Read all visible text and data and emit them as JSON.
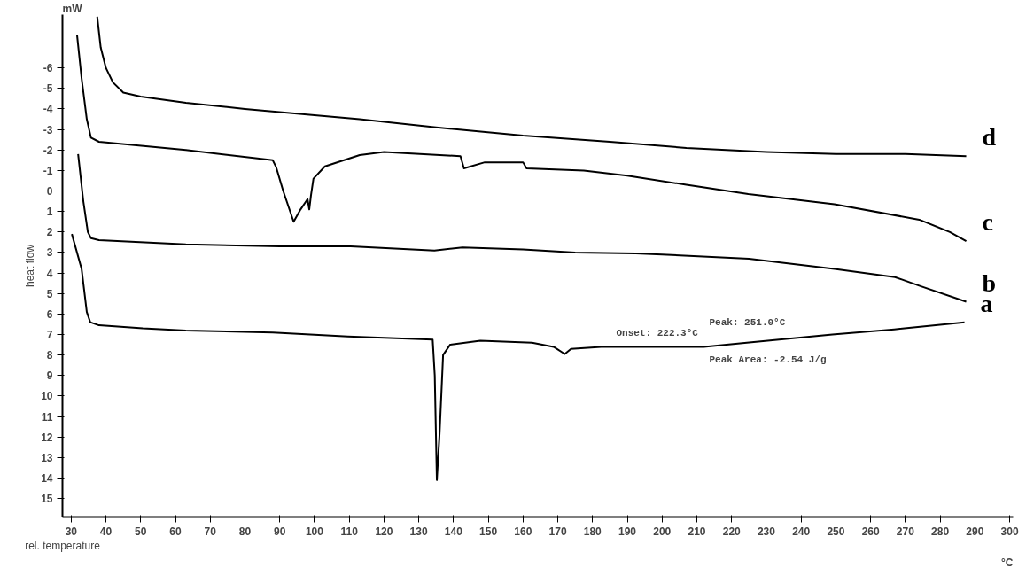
{
  "chart_data": {
    "type": "line",
    "xlabel": "rel. temperature",
    "ylabel": "heat flow",
    "annotations": [
      "mW",
      "°C",
      "Onset: 222.3°C",
      "Peak: 251.0°C",
      "Peak Area: -2.54 J/g"
    ],
    "xlim": [
      27.5,
      301
    ],
    "xticks": [
      30,
      40,
      50,
      60,
      70,
      80,
      90,
      100,
      110,
      120,
      130,
      140,
      150,
      160,
      170,
      180,
      190,
      200,
      210,
      220,
      230,
      240,
      250,
      260,
      270,
      280,
      290,
      300
    ],
    "ylim": [
      15.9,
      -8.6
    ],
    "yticks": [
      -6,
      -5,
      -4,
      -3,
      -2,
      -1,
      0,
      1,
      2,
      3,
      4,
      5,
      6,
      7,
      8,
      9,
      10,
      11,
      12,
      13,
      14,
      15
    ],
    "grid": false,
    "legend": false,
    "line_style": "solid",
    "marker": "none",
    "series": [
      {
        "name": "d",
        "color": "#000000",
        "x": [
          37.5,
          38.5,
          40,
          42,
          45,
          50,
          63,
          80,
          100,
          113,
          135,
          160,
          185,
          207,
          230,
          250,
          270,
          287.5
        ],
        "values": [
          -8.5,
          -7,
          -6,
          -5.3,
          -4.8,
          -4.6,
          -4.3,
          -4.0,
          -3.7,
          -3.5,
          -3.1,
          -2.7,
          -2.4,
          -2.1,
          -1.9,
          -1.8,
          -1.8,
          -1.7
        ]
      },
      {
        "name": "c",
        "color": "#000000",
        "x": [
          31.7,
          33,
          34.5,
          35.7,
          38,
          63,
          88,
          89,
          91,
          94,
          96,
          98,
          98.5,
          99,
          99.7,
          103,
          113,
          120,
          142,
          143,
          149,
          160,
          161,
          177.5,
          190,
          207,
          224.8,
          249.6,
          274,
          282.8,
          287.5
        ],
        "values": [
          -7.6,
          -5.5,
          -3.5,
          -2.6,
          -2.4,
          -2.0,
          -1.5,
          -1.15,
          0.0,
          1.5,
          0.9,
          0.4,
          0.9,
          0.2,
          -0.6,
          -1.2,
          -1.75,
          -1.9,
          -1.7,
          -1.1,
          -1.4,
          -1.4,
          -1.1,
          -1.0,
          -0.75,
          -0.3,
          0.15,
          0.65,
          1.4,
          2.0,
          2.45
        ]
      },
      {
        "name": "b",
        "color": "#000000",
        "x": [
          32,
          33.5,
          34.8,
          35.7,
          38,
          63,
          90,
          110.4,
          134.5,
          142.6,
          160,
          175,
          192.4,
          200,
          225,
          249.6,
          267,
          274.5,
          287.5
        ],
        "values": [
          -1.8,
          0.5,
          2.0,
          2.3,
          2.4,
          2.6,
          2.7,
          2.7,
          2.9,
          2.75,
          2.85,
          3.0,
          3.05,
          3.1,
          3.3,
          3.8,
          4.2,
          4.65,
          5.4
        ]
      },
      {
        "name": "a",
        "color": "#000000",
        "x": [
          30.2,
          33,
          34.5,
          35.5,
          38,
          50.6,
          63,
          88,
          109.6,
          134,
          134.6,
          135.2,
          136,
          137,
          139,
          147.7,
          162.6,
          168.8,
          172,
          173.8,
          182.5,
          200,
          212,
          224.4,
          249,
          266.8,
          287
        ],
        "values": [
          2.1,
          3.8,
          5.9,
          6.4,
          6.55,
          6.7,
          6.8,
          6.9,
          7.1,
          7.25,
          9.0,
          14.1,
          11.8,
          8.0,
          7.5,
          7.3,
          7.4,
          7.6,
          7.95,
          7.7,
          7.6,
          7.6,
          7.6,
          7.4,
          7.0,
          6.75,
          6.4
        ]
      }
    ]
  }
}
